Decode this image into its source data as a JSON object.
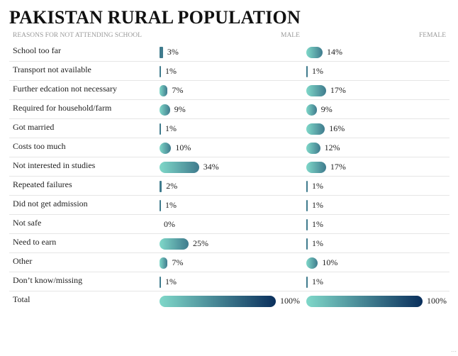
{
  "title": "PAKISTAN RURAL POPULATION",
  "colors": {
    "gradient_start": "#7fd8c9",
    "gradient_end": "#0a2f5c"
  },
  "chart_data": {
    "type": "bar",
    "title": "PAKISTAN RURAL POPULATION",
    "category_header": "REASONS FOR NOT ATTENDING SCHOOL",
    "categories": [
      "School too far",
      "Transport not available",
      "Further edcation not necessary",
      "Required for household/farm",
      "Got married",
      "Costs too much",
      "Not interested in studies",
      "Repeated failures",
      "Did not get admission",
      "Not safe",
      "Need to earn",
      "Other",
      "Don’t know/missing",
      "Total"
    ],
    "series": [
      {
        "name": "MALE",
        "values": [
          3,
          1,
          7,
          9,
          1,
          10,
          34,
          2,
          1,
          0,
          25,
          7,
          1,
          100
        ],
        "labels": [
          "3%",
          "1%",
          "7%",
          "9%",
          "1%",
          "10%",
          "34%",
          "2%",
          "1%",
          "0%",
          "25%",
          "7%",
          "1%",
          "100%"
        ]
      },
      {
        "name": "FEMALE",
        "values": [
          14,
          1,
          17,
          9,
          16,
          12,
          17,
          1,
          1,
          1,
          1,
          10,
          1,
          100
        ],
        "labels": [
          "14%",
          "1%",
          "17%",
          "9%",
          "16%",
          "12%",
          "17%",
          "1%",
          "1%",
          "1%",
          "1%",
          "10%",
          "1%",
          "100%"
        ]
      }
    ],
    "value_unit": "%",
    "xlim": [
      0,
      100
    ],
    "grid": false,
    "legend": "none"
  }
}
